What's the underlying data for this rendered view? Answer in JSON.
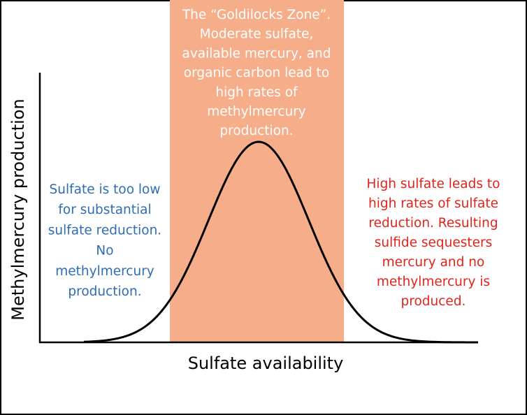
{
  "y_axis_label": "Methylmercury production",
  "x_axis_label": "Sulfate availability",
  "annotations": {
    "goldilocks": {
      "lines": [
        "The “Goldilocks Zone”.",
        "Moderate sulfate,",
        "available mercury, and",
        "organic carbon lead to",
        "high rates of",
        "methylmercury",
        "production."
      ]
    },
    "low": {
      "lines": [
        "Sulfate is too low",
        "for substantial",
        "sulfate reduction.",
        "No",
        "methylmercury",
        "production."
      ]
    },
    "high": {
      "lines": [
        "High sulfate leads to",
        "high rates of sulfate",
        "reduction. Resulting",
        "sulfide sequesters",
        "mercury and no",
        "methylmercury is",
        "produced."
      ]
    }
  }
}
